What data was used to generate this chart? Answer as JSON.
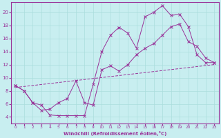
{
  "background_color": "#c8eef0",
  "grid_color": "#aadddd",
  "line_color": "#993399",
  "xlim": [
    -0.5,
    23.5
  ],
  "ylim": [
    3.0,
    21.5
  ],
  "xlabel": "Windchill (Refroidissement éolien,°C)",
  "xticks": [
    0,
    1,
    2,
    3,
    4,
    5,
    6,
    7,
    8,
    9,
    10,
    11,
    12,
    13,
    14,
    15,
    16,
    17,
    18,
    19,
    20,
    21,
    22,
    23
  ],
  "yticks": [
    4,
    6,
    8,
    10,
    12,
    14,
    16,
    18,
    20
  ],
  "line1_x": [
    0,
    1,
    2,
    3,
    4,
    5,
    6,
    7,
    8,
    9,
    10,
    11,
    12,
    13,
    14,
    15,
    16,
    17,
    18,
    19,
    20,
    21,
    22,
    23
  ],
  "line1_y": [
    8.8,
    8.0,
    6.2,
    5.8,
    4.3,
    4.2,
    4.2,
    4.2,
    4.2,
    9.0,
    14.0,
    16.5,
    17.7,
    16.8,
    14.5,
    19.3,
    20.0,
    21.0,
    19.5,
    19.7,
    17.8,
    13.5,
    12.3,
    12.3
  ],
  "line2_x": [
    0,
    1,
    2,
    3,
    4,
    5,
    6,
    7,
    8,
    9,
    10,
    11,
    12,
    13,
    14,
    15,
    16,
    17,
    18,
    19,
    20,
    21,
    22,
    23
  ],
  "line2_y": [
    8.8,
    8.0,
    6.2,
    5.0,
    5.2,
    6.2,
    6.8,
    9.5,
    6.2,
    5.8,
    11.2,
    11.8,
    11.0,
    12.0,
    13.5,
    14.5,
    15.2,
    16.5,
    17.8,
    18.2,
    15.5,
    14.8,
    13.0,
    12.3
  ],
  "line3_x": [
    0,
    23
  ],
  "line3_y": [
    8.5,
    12.0
  ]
}
